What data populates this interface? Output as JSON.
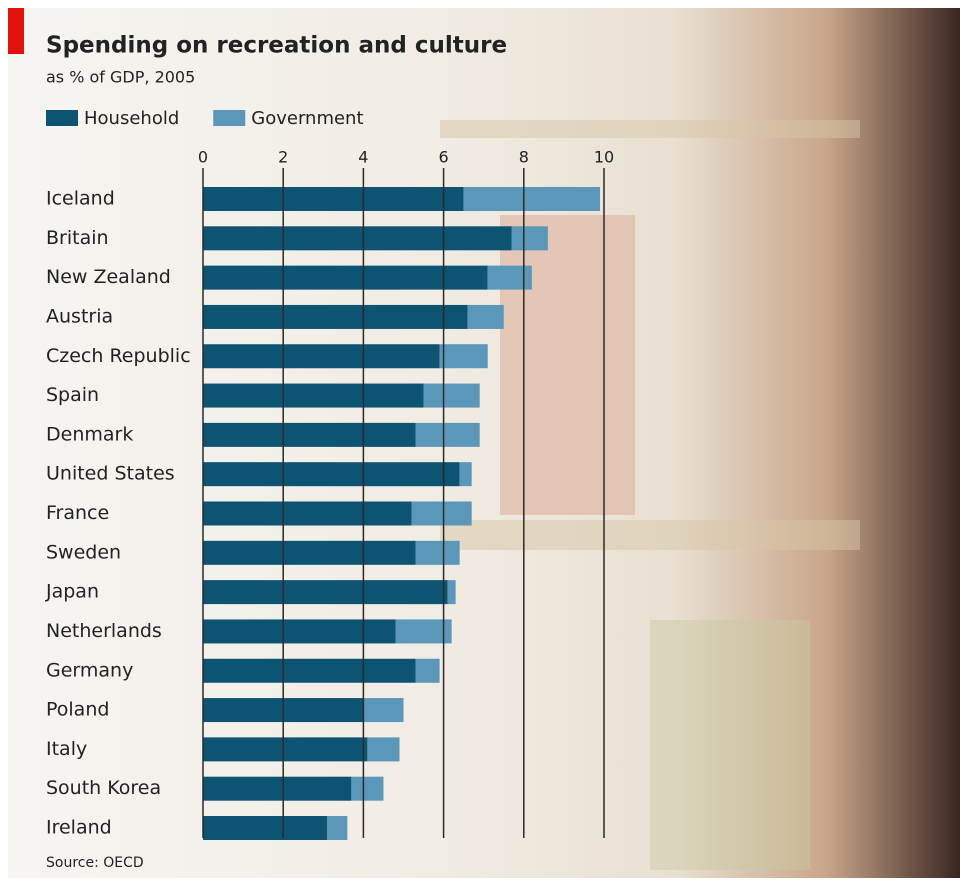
{
  "chart_data": {
    "type": "bar",
    "orientation": "horizontal",
    "stacked": true,
    "title": "Spending on recreation and culture",
    "subtitle": "as % of GDP, 2005",
    "source": "Source: OECD",
    "categories": [
      "Iceland",
      "Britain",
      "New Zealand",
      "Austria",
      "Czech Republic",
      "Spain",
      "Denmark",
      "United States",
      "France",
      "Sweden",
      "Japan",
      "Netherlands",
      "Germany",
      "Poland",
      "Italy",
      "South Korea",
      "Ireland"
    ],
    "series": [
      {
        "name": "Household",
        "color": "#0d5372",
        "values": [
          6.5,
          7.7,
          7.1,
          6.6,
          5.9,
          5.5,
          5.3,
          6.4,
          5.2,
          5.3,
          6.1,
          4.8,
          5.3,
          4.0,
          4.1,
          3.7,
          3.1
        ]
      },
      {
        "name": "Government",
        "color": "#5b97b8",
        "values": [
          3.4,
          0.9,
          1.1,
          0.9,
          1.2,
          1.4,
          1.6,
          0.3,
          1.5,
          1.1,
          0.2,
          1.4,
          0.6,
          1.0,
          0.8,
          0.8,
          0.5
        ]
      }
    ],
    "xlim": [
      0,
      10
    ],
    "xticks": [
      0,
      2,
      4,
      6,
      8,
      10
    ],
    "grid": true,
    "grid_color": "#2a2a2a",
    "legend": "top-left"
  }
}
